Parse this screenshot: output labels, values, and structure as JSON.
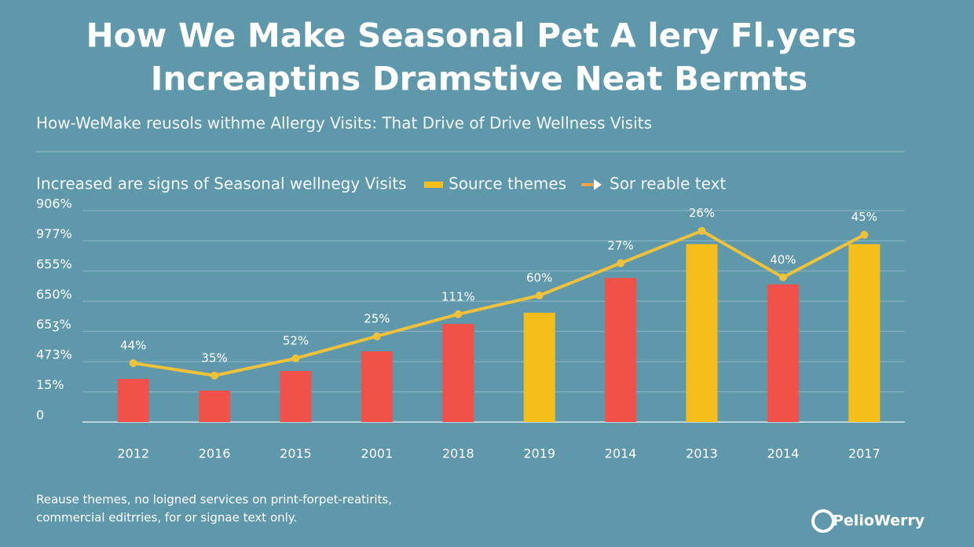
{
  "chart_data": {
    "type": "bar",
    "title": [
      "How We Make Seasonal Pet A lery Fl.yers",
      "Increaptins Dramstive Neat Bermts"
    ],
    "subtitle": "How-WeMake reusols withme Allergy Visits: That Drive of Drive Wellness Visits",
    "caption": "Increased are signs of Seasonal wellnegy Visits",
    "categories": [
      "2012",
      "2016",
      "2015",
      "2001",
      "2018",
      "2019",
      "2014",
      "2013",
      "2014",
      "2017"
    ],
    "series": [
      {
        "name": "Source themes",
        "color": "#f4bf1a",
        "colors": [
          "#f0524a",
          "#f0524a",
          "#f0524a",
          "#f0524a",
          "#f0524a",
          "#f4bf1a",
          "#f0524a",
          "#f4bf1a",
          "#f0524a",
          "#f4bf1a"
        ],
        "values": [
          1.43,
          1.04,
          1.69,
          2.34,
          3.25,
          3.62,
          4.77,
          5.89,
          4.56,
          5.89
        ]
      },
      {
        "name": "Sor reable text",
        "color": "#f0c23a",
        "type": "line",
        "values": [
          1.95,
          1.54,
          2.11,
          2.84,
          3.57,
          4.19,
          5.26,
          6.33,
          4.79,
          6.2
        ],
        "value_labels": [
          "44%",
          "35%",
          "52%",
          "25%",
          "111%",
          "60%",
          "27%",
          "26%",
          "40%",
          "45%"
        ]
      }
    ],
    "ylim": [
      0,
      7
    ],
    "yticks": [
      0,
      {
        "value": 1,
        "label": "15%"
      },
      {
        "value": 2,
        "label": "473%"
      },
      {
        "value": 3,
        "label": "65ʒ%"
      },
      {
        "value": 4,
        "label": "650%"
      },
      {
        "value": 5,
        "label": "655%"
      },
      {
        "value": 6,
        "label": "977%"
      },
      {
        "value": 7,
        "label": "906%"
      }
    ],
    "grid": true,
    "footnote": [
      "Reause themes, no loigned services on print-forpet-reatirits,",
      "commercial editrries, for or signae text only."
    ]
  },
  "logo": "PelioWerry"
}
